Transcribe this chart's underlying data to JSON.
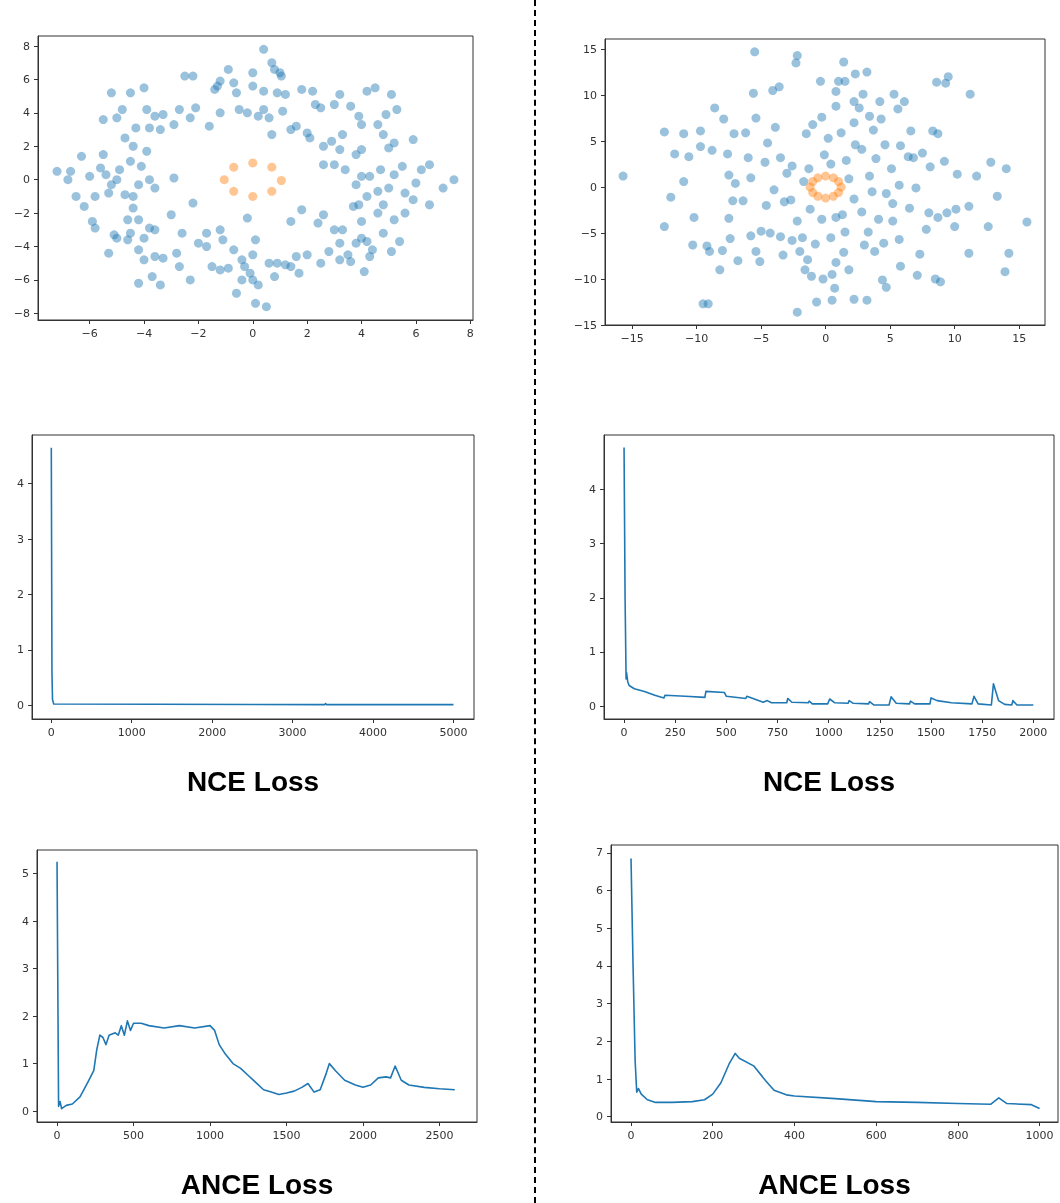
{
  "chart_data": [
    {
      "type": "scatter",
      "marker": "circle",
      "xlim": [
        -7.9,
        8.1
      ],
      "ylim": [
        -8.4,
        8.6
      ],
      "xticks": [
        -6,
        -4,
        -2,
        0,
        2,
        4,
        6,
        8
      ],
      "yticks": [
        -8,
        -6,
        -4,
        -2,
        0,
        2,
        4,
        6,
        8
      ],
      "series": [
        {
          "color": "#1f77b4",
          "x": [
            0.4,
            0.7,
            0.8,
            1.0,
            1.05,
            -0.9,
            0,
            -2.5,
            -2.2,
            -1.3,
            -1.4,
            -1.2,
            -0.7,
            -0.6,
            0,
            0.4,
            0.9,
            1.2,
            1.8,
            2.2,
            -2.1,
            -2.7,
            -3.3,
            -3.6,
            -3.9,
            -4.0,
            -4.5,
            -5.2,
            -4.8,
            -5.0,
            -5.5,
            -4.3,
            -3.8,
            -3.4,
            -2.9,
            -2.3,
            -1.6,
            -1.2,
            -0.5,
            0.2,
            0.6,
            -0.2,
            0.4,
            1.1,
            0.7,
            1.4,
            1.6,
            2.0,
            2.1,
            2.5,
            2.3,
            3.0,
            3.2,
            3.6,
            3.9,
            4.0,
            4.2,
            4.5,
            5.1,
            5.3,
            4.9,
            4.6,
            4.8,
            3.3,
            2.9,
            2.6,
            3.2,
            3.8,
            4.0,
            5.2,
            5.9,
            5.0,
            -7.2,
            -6.8,
            -6.7,
            -6.5,
            -6.2,
            -6.3,
            -6.0,
            -5.8,
            -5.6,
            -5.5,
            -5.4,
            -5.2,
            -5.0,
            -5.3,
            -4.9,
            -4.7,
            -4.4,
            -4.5,
            -4.2,
            -4.1,
            -3.8,
            -3.6,
            -2.9,
            -4.4,
            -3.9,
            -4.7,
            7.4,
            7.0,
            6.5,
            6.5,
            6.2,
            6.0,
            5.9,
            5.5,
            5.6,
            5.2,
            5.0,
            4.7,
            4.6,
            4.3,
            4.0,
            3.8,
            4.2,
            3.4,
            3.0,
            2.6,
            5.6,
            5.2,
            4.8,
            -0.2,
            -2.2,
            -1.7,
            -1.2,
            -2.0,
            -1.7,
            -1.1,
            -0.7,
            -0.4,
            0,
            0.1,
            -0.3,
            -0.1,
            0,
            0.2,
            -0.6,
            0.1,
            0.5,
            -1.2,
            -1.5,
            -2.3,
            -2.7,
            -2.8,
            -2.6,
            -3.0,
            -3.8,
            -3.6,
            -4.0,
            -4.5,
            -4.6,
            -4.2,
            -4.0,
            -3.6,
            -3.3,
            -3.7,
            -3.4,
            -4.2,
            -5.1,
            -5.0,
            -5.3,
            -5.8,
            -5.9,
            -4.6,
            -4.2,
            -4.4,
            1.4,
            1.8,
            0.9,
            1.4,
            1.6,
            2.0,
            2.5,
            2.4,
            2.6,
            3.0,
            3.3,
            3.2,
            3.5,
            3.6,
            3.2,
            2.8,
            4.0,
            3.8,
            4.2,
            4.4,
            4.3,
            4.1,
            4.8,
            5.1,
            5.4,
            4.0,
            3.7,
            3.9,
            4.6,
            1.2,
            0.6,
            0.8,
            1.7,
            -0.9,
            -0.4
          ],
          "values": [
            7.8,
            7.0,
            6.6,
            6.4,
            6.2,
            6.6,
            6.4,
            6.2,
            6.2,
            5.6,
            5.4,
            5.9,
            5.8,
            5.2,
            5.6,
            5.3,
            5.2,
            5.1,
            5.4,
            5.3,
            4.3,
            4.2,
            3.9,
            3.8,
            4.2,
            5.5,
            5.2,
            5.2,
            4.2,
            3.7,
            3.6,
            3.1,
            3.1,
            3.0,
            3.3,
            3.7,
            3.2,
            4.0,
            4.2,
            3.8,
            3.7,
            4.0,
            4.2,
            4.1,
            2.7,
            3.0,
            3.2,
            2.8,
            2.5,
            4.3,
            4.5,
            4.5,
            5.1,
            4.4,
            3.8,
            3.3,
            5.3,
            5.5,
            5.1,
            4.2,
            3.9,
            3.3,
            2.7,
            2.7,
            2.3,
            2.0,
            1.8,
            1.5,
            1.8,
            2.2,
            2.4,
            1.9,
            0.5,
            0.0,
            0.5,
            -1.0,
            -1.6,
            1.4,
            0.2,
            -1.0,
            0.7,
            1.5,
            0.3,
            -0.3,
            0.0,
            -0.8,
            0.6,
            -0.9,
            -1.0,
            1.1,
            -0.3,
            0.8,
            0.0,
            -0.5,
            0.1,
            2.0,
            1.7,
            2.5,
            0.0,
            -0.5,
            0.9,
            -1.5,
            0.6,
            -0.2,
            -1.2,
            0.8,
            -0.8,
            0.3,
            -0.5,
            0.6,
            -0.7,
            0.2,
            0.2,
            -0.3,
            -1.0,
            0.6,
            0.9,
            0.9,
            -2.0,
            -2.4,
            -1.5,
            -2.3,
            -1.4,
            -3.2,
            -3.0,
            -3.8,
            -4.0,
            -3.6,
            -4.2,
            -4.8,
            -4.5,
            -3.6,
            -5.2,
            -5.6,
            -6.0,
            -6.3,
            -6.8,
            -7.4,
            -7.6,
            -5.4,
            -5.2,
            -6.0,
            -5.2,
            -4.4,
            -3.2,
            -2.1,
            -2.9,
            -3.0,
            -3.5,
            -3.2,
            -3.6,
            -4.2,
            -4.8,
            -4.6,
            -4.7,
            -5.8,
            -6.3,
            -6.2,
            -3.3,
            -3.5,
            -4.4,
            -2.9,
            -2.5,
            -2.4,
            -2.4,
            -1.7,
            -2.5,
            -1.8,
            -5.0,
            -5.2,
            -4.6,
            -4.5,
            -5.0,
            -2.6,
            -2.1,
            -3.0,
            -3.0,
            -3.8,
            -4.5,
            -4.9,
            -4.8,
            -4.3,
            -3.5,
            -3.8,
            -3.7,
            -4.2,
            -4.6,
            -5.5,
            -3.2,
            -4.3,
            -3.7,
            -2.5,
            -1.6,
            -1.5,
            -2.0,
            -5.1,
            -5.0,
            -5.8,
            -5.6,
            -5.3,
            -6.0
          ]
        },
        {
          "color": "#ff7f0e",
          "x": [
            0,
            0.7,
            1.05,
            0.7,
            0,
            -0.7,
            -1.05,
            -0.7
          ],
          "values": [
            1.0,
            0.75,
            -0.05,
            -0.7,
            -1.0,
            -0.7,
            0.0,
            0.75
          ]
        }
      ]
    },
    {
      "type": "scatter",
      "marker": "circle",
      "xlim": [
        -17.1,
        17.0
      ],
      "ylim": [
        -15,
        16.1
      ],
      "xticks": [
        -15,
        -10,
        -5,
        0,
        5,
        10,
        15
      ],
      "yticks": [
        -15,
        -10,
        -5,
        0,
        5,
        10,
        15
      ],
      "series": [
        {
          "color": "#1f77b4",
          "x": [
            -15.7,
            -12.5,
            -11.7,
            -12.5,
            -12.0,
            -11.0,
            -11.0,
            -10.6,
            -10.2,
            -9.7,
            -9.7,
            -10.3,
            -9.5,
            -9.1,
            -9.2,
            -9.0,
            -8.8,
            -8.6,
            -8.2,
            -8.0,
            -7.9,
            -7.6,
            -7.5,
            -7.5,
            -7.4,
            -7.2,
            -7.1,
            -7.0,
            -6.8,
            -6.4,
            -6.2,
            -6.0,
            -5.8,
            -5.8,
            -5.6,
            -5.5,
            -5.4,
            -5.4,
            -5.1,
            -5.0,
            -4.7,
            -4.6,
            -4.5,
            -4.3,
            -4.1,
            -4.0,
            -3.9,
            -3.6,
            -3.5,
            -3.5,
            -3.2,
            -3.3,
            -3.0,
            -2.7,
            -2.6,
            -2.6,
            -2.2,
            -2.3,
            -2.2,
            -2.2,
            -2.0,
            -1.8,
            -1.7,
            -1.6,
            -1.5,
            -1.3,
            -1.2,
            -1.4,
            -1.1,
            -1.0,
            -0.8,
            -0.7,
            -0.3,
            -0.3,
            -0.2,
            -0.1,
            0.4,
            0.2,
            -0.4,
            0.4,
            0.5,
            0.5,
            0.7,
            0.8,
            0.8,
            0.8,
            0.8,
            1.2,
            1.0,
            1.4,
            1.5,
            1.3,
            1.4,
            1.5,
            1.6,
            1.8,
            1.8,
            2.2,
            2.2,
            2.3,
            2.2,
            2.2,
            2.3,
            2.6,
            2.8,
            2.8,
            2.9,
            3.0,
            3.2,
            3.2,
            3.3,
            3.4,
            3.4,
            3.6,
            3.7,
            3.8,
            3.9,
            4.1,
            4.2,
            4.3,
            4.4,
            4.5,
            4.6,
            4.7,
            4.7,
            5.1,
            5.2,
            5.2,
            5.3,
            5.6,
            5.8,
            5.7,
            5.8,
            5.7,
            6.1,
            6.4,
            6.6,
            6.5,
            6.8,
            7.0,
            7.1,
            7.3,
            7.5,
            7.8,
            8.0,
            8.1,
            8.3,
            8.5,
            8.7,
            8.7,
            8.9,
            8.6,
            9.3,
            9.5,
            9.4,
            9.2,
            10.0,
            10.2,
            10.1,
            11.2,
            11.1,
            11.1,
            11.7,
            12.6,
            12.8,
            13.3,
            13.9,
            14.0,
            14.2,
            15.6
          ],
          "values": [
            1.2,
            6.0,
            3.6,
            -4.3,
            -1.1,
            5.8,
            0.6,
            3.3,
            -3.3,
            4.4,
            6.1,
            -6.3,
            -12.7,
            -12.7,
            -6.4,
            -7.0,
            4.0,
            8.6,
            -9.0,
            -6.9,
            7.4,
            3.6,
            1.3,
            -3.4,
            -5.6,
            -1.5,
            5.8,
            0.4,
            -8.0,
            -1.5,
            5.9,
            3.2,
            1.0,
            -5.3,
            10.2,
            14.7,
            7.5,
            -7.0,
            -8.1,
            -4.8,
            2.7,
            -2.0,
            4.8,
            -5.0,
            10.5,
            -0.3,
            6.5,
            10.9,
            3.2,
            -5.4,
            -1.6,
            -7.4,
            1.5,
            -1.4,
            -5.8,
            2.3,
            14.3,
            13.5,
            -13.6,
            -3.7,
            -7.0,
            -5.5,
            0.6,
            -9.0,
            5.8,
            2.0,
            -2.4,
            -7.9,
            -9.7,
            6.8,
            -6.2,
            -12.5,
            -3.5,
            7.6,
            -10.0,
            3.5,
            2.5,
            5.3,
            11.5,
            -5.5,
            -9.5,
            -12.3,
            -11.0,
            -8.2,
            -3.3,
            10.4,
            8.8,
            5.9,
            11.5,
            13.6,
            11.5,
            -3.0,
            -7.1,
            -4.9,
            2.9,
            0.9,
            -9.0,
            -1.3,
            -12.2,
            4.6,
            7.0,
            9.3,
            12.3,
            8.6,
            4.1,
            -2.7,
            10.1,
            -6.3,
            12.5,
            -12.3,
            -4.9,
            1.2,
            7.7,
            -0.5,
            6.2,
            -7.0,
            3.1,
            -3.5,
            9.3,
            7.4,
            -10.1,
            -6.1,
            4.6,
            -0.7,
            -10.9,
            2.0,
            -3.7,
            -1.8,
            10.1,
            8.5,
            4.5,
            -5.7,
            -8.6,
            0.2,
            9.3,
            3.3,
            6.1,
            -2.3,
            3.2,
            -0.1,
            -9.6,
            -7.3,
            3.7,
            -4.6,
            -2.8,
            2.2,
            6.1,
            -10.0,
            5.8,
            -3.3,
            -10.3,
            11.4,
            11.3,
            12.0,
            -2.8,
            2.8,
            -4.3,
            1.4,
            -2.4,
            10.1,
            -7.2,
            -2.1,
            1.2,
            -4.3,
            2.7,
            -1.0,
            -9.2,
            2.0,
            -7.2,
            -3.8
          ]
        },
        {
          "color": "#ff7f0e",
          "x": [
            1.2,
            1.0,
            0.6,
            0,
            -0.6,
            -1.0,
            -1.2,
            -1.0,
            -0.6,
            0,
            0.6,
            1.0
          ],
          "values": [
            0,
            0.6,
            1.0,
            1.2,
            1.0,
            0.6,
            0,
            -0.6,
            -1.0,
            -1.2,
            -1.0,
            -0.6
          ]
        }
      ]
    },
    {
      "type": "line",
      "xlabel": "NCE Loss",
      "xlim": [
        -240,
        5255
      ],
      "ylim": [
        -0.25,
        4.88
      ],
      "xticks": [
        0,
        1000,
        2000,
        3000,
        4000,
        5000
      ],
      "yticks": [
        0,
        1,
        2,
        3,
        4
      ],
      "series": [
        {
          "color": "#1f77b4",
          "x": [
            0,
            8,
            15,
            30,
            3400,
            3410,
            3420,
            5000
          ],
          "values": [
            4.65,
            0.6,
            0.1,
            0.02,
            0.01,
            0.03,
            0.01,
            0.01
          ]
        }
      ]
    },
    {
      "type": "line",
      "xlabel": "NCE Loss",
      "xlim": [
        -98,
        2101
      ],
      "ylim": [
        -0.24,
        5.01
      ],
      "xticks": [
        0,
        250,
        500,
        750,
        1000,
        1250,
        1500,
        1750,
        2000
      ],
      "yticks": [
        0,
        1,
        2,
        3,
        4
      ],
      "series": [
        {
          "color": "#1f77b4",
          "x": [
            0,
            5,
            10,
            12,
            18,
            25,
            50,
            100,
            150,
            195,
            200,
            300,
            395,
            400,
            490,
            500,
            595,
            600,
            680,
            700,
            720,
            795,
            800,
            820,
            900,
            905,
            920,
            995,
            1005,
            1030,
            1095,
            1100,
            1120,
            1195,
            1200,
            1220,
            1295,
            1305,
            1330,
            1395,
            1400,
            1420,
            1495,
            1500,
            1530,
            1600,
            1700,
            1710,
            1730,
            1795,
            1805,
            1830,
            1860,
            1895,
            1900,
            1920,
            2000
          ],
          "values": [
            4.78,
            2.0,
            0.5,
            0.62,
            0.45,
            0.38,
            0.32,
            0.27,
            0.2,
            0.15,
            0.2,
            0.18,
            0.16,
            0.27,
            0.25,
            0.18,
            0.14,
            0.18,
            0.07,
            0.1,
            0.06,
            0.06,
            0.14,
            0.07,
            0.06,
            0.09,
            0.04,
            0.04,
            0.13,
            0.06,
            0.05,
            0.1,
            0.05,
            0.04,
            0.08,
            0.02,
            0.02,
            0.17,
            0.05,
            0.04,
            0.09,
            0.04,
            0.04,
            0.15,
            0.1,
            0.06,
            0.04,
            0.18,
            0.04,
            0.02,
            0.41,
            0.1,
            0.03,
            0.02,
            0.1,
            0.02,
            0.02
          ]
        }
      ]
    },
    {
      "type": "line",
      "xlabel": "ANCE Loss",
      "xlim": [
        -131,
        2745
      ],
      "ylim": [
        -0.23,
        5.5
      ],
      "xticks": [
        0,
        500,
        1000,
        1500,
        2000,
        2500
      ],
      "yticks": [
        0,
        1,
        2,
        3,
        4,
        5
      ],
      "series": [
        {
          "color": "#1f77b4",
          "x": [
            0,
            10,
            20,
            30,
            60,
            100,
            150,
            200,
            240,
            260,
            280,
            300,
            320,
            340,
            380,
            400,
            420,
            440,
            460,
            480,
            500,
            550,
            600,
            700,
            800,
            900,
            1000,
            1030,
            1060,
            1100,
            1150,
            1200,
            1250,
            1300,
            1350,
            1400,
            1450,
            1500,
            1550,
            1600,
            1640,
            1680,
            1720,
            1760,
            1780,
            1820,
            1880,
            1950,
            2000,
            2050,
            2100,
            2150,
            2180,
            2210,
            2250,
            2300,
            2400,
            2500,
            2600
          ],
          "values": [
            5.25,
            0.1,
            0.2,
            0.05,
            0.12,
            0.15,
            0.3,
            0.6,
            0.85,
            1.3,
            1.6,
            1.55,
            1.4,
            1.6,
            1.65,
            1.6,
            1.8,
            1.6,
            1.9,
            1.7,
            1.85,
            1.85,
            1.8,
            1.75,
            1.8,
            1.75,
            1.8,
            1.7,
            1.4,
            1.2,
            1.0,
            0.9,
            0.75,
            0.6,
            0.45,
            0.4,
            0.35,
            0.38,
            0.42,
            0.5,
            0.58,
            0.4,
            0.45,
            0.8,
            1.0,
            0.85,
            0.65,
            0.55,
            0.5,
            0.55,
            0.7,
            0.72,
            0.7,
            0.95,
            0.65,
            0.55,
            0.5,
            0.47,
            0.45
          ]
        }
      ]
    },
    {
      "type": "line",
      "xlabel": "ANCE Loss",
      "xlim": [
        -49,
        1045
      ],
      "ylim": [
        -0.14,
        7.21
      ],
      "xticks": [
        0,
        200,
        400,
        600,
        800,
        1000
      ],
      "yticks": [
        0,
        1,
        2,
        3,
        4,
        5,
        6,
        7
      ],
      "series": [
        {
          "color": "#1f77b4",
          "x": [
            0,
            5,
            10,
            14,
            18,
            25,
            40,
            60,
            100,
            150,
            180,
            200,
            220,
            240,
            255,
            265,
            300,
            330,
            350,
            380,
            400,
            500,
            600,
            700,
            800,
            880,
            900,
            920,
            980,
            1000
          ],
          "values": [
            6.85,
            4.0,
            1.5,
            0.65,
            0.75,
            0.6,
            0.45,
            0.38,
            0.38,
            0.4,
            0.45,
            0.6,
            0.9,
            1.4,
            1.68,
            1.55,
            1.35,
            0.95,
            0.7,
            0.58,
            0.55,
            0.48,
            0.4,
            0.38,
            0.35,
            0.33,
            0.5,
            0.35,
            0.32,
            0.22
          ]
        }
      ]
    }
  ]
}
